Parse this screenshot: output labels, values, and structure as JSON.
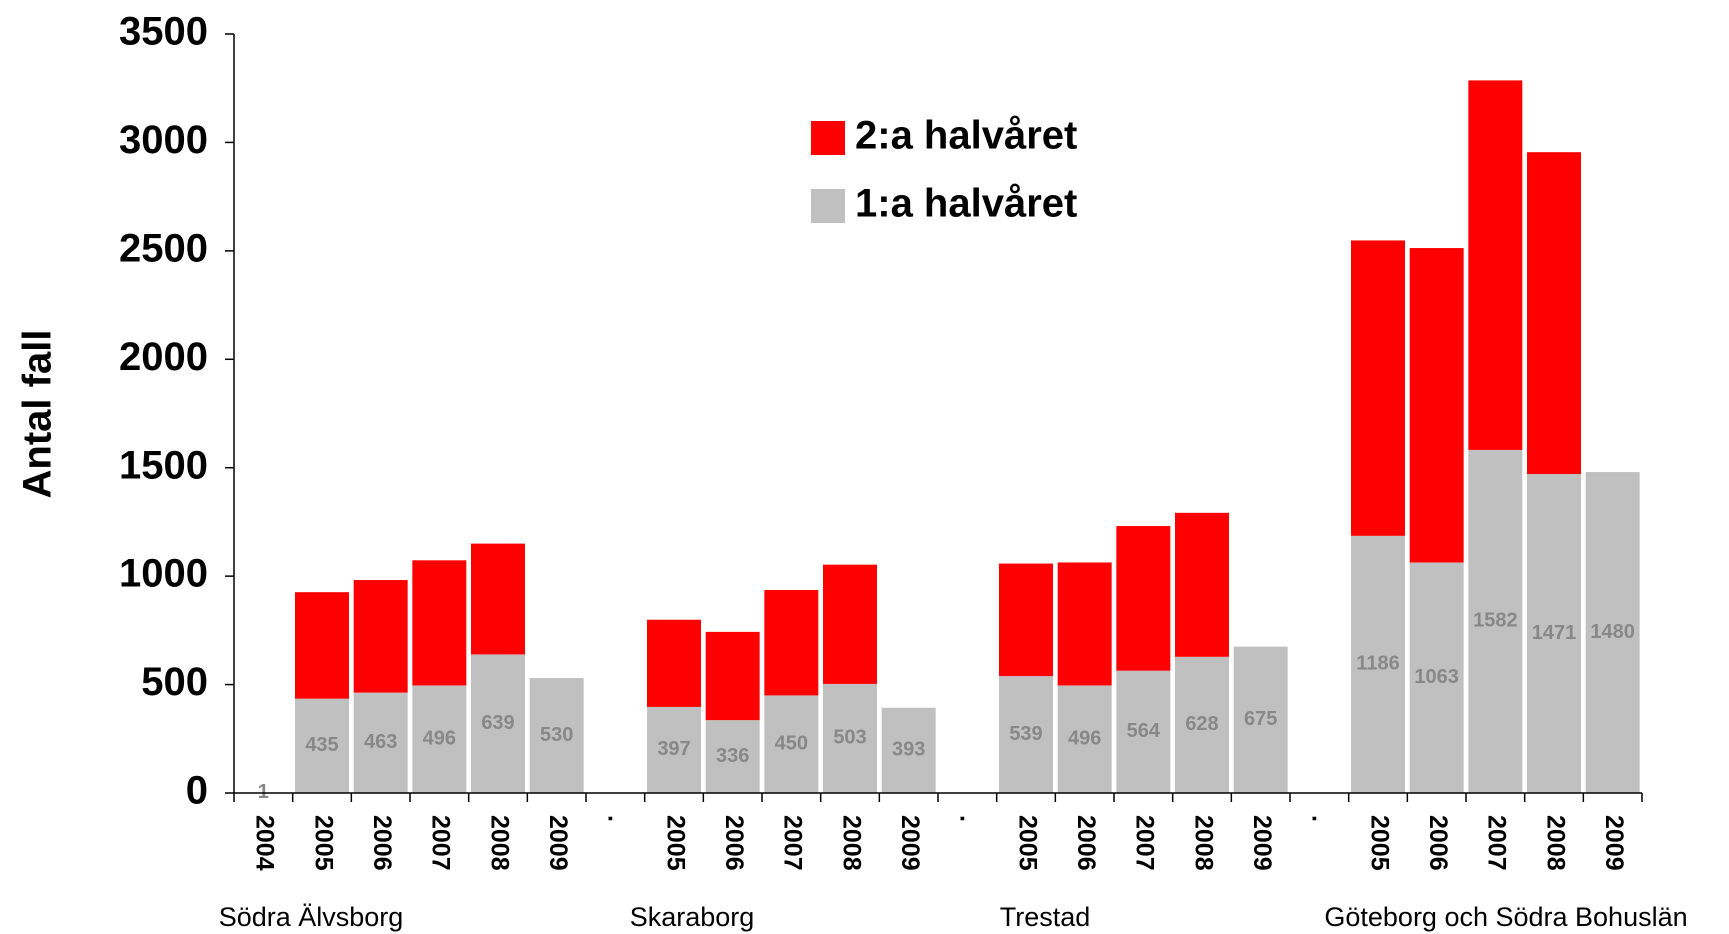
{
  "chart_data": {
    "type": "stacked_bar",
    "y_label": "Antal fall",
    "categories": [
      "2004",
      "2005",
      "2006",
      "2007",
      "2008",
      "2009",
      ".",
      "2005",
      "2006",
      "2007",
      "2008",
      "2009",
      ".",
      "2005",
      "2006",
      "2007",
      "2008",
      "2009",
      ".",
      "2005",
      "2006",
      "2007",
      "2008",
      "2009"
    ],
    "groups": [
      "Södra Älvsborg",
      "Skaraborg",
      "Trestad",
      "Göteborg och Södra Bohuslän"
    ],
    "series": [
      {
        "name": "1:a halvåret",
        "color": "#c0c0c0",
        "labels": true,
        "values": [
          1,
          435,
          463,
          496,
          639,
          530,
          null,
          397,
          336,
          450,
          503,
          393,
          null,
          539,
          496,
          564,
          628,
          675,
          null,
          1186,
          1063,
          1582,
          1471,
          1480
        ]
      },
      {
        "name": "2:a halvåret",
        "color": "#ff0000",
        "labels": false,
        "values": [
          null,
          491,
          519,
          577,
          511,
          null,
          null,
          402,
          407,
          486,
          550,
          null,
          null,
          519,
          567,
          667,
          664,
          null,
          null,
          1362,
          1450,
          1704,
          1484,
          null
        ]
      }
    ],
    "ylim": [
      0,
      3500
    ],
    "yticks": [
      0,
      500,
      1000,
      1500,
      2000,
      2500,
      3000,
      3500
    ],
    "legend": "top-center"
  }
}
